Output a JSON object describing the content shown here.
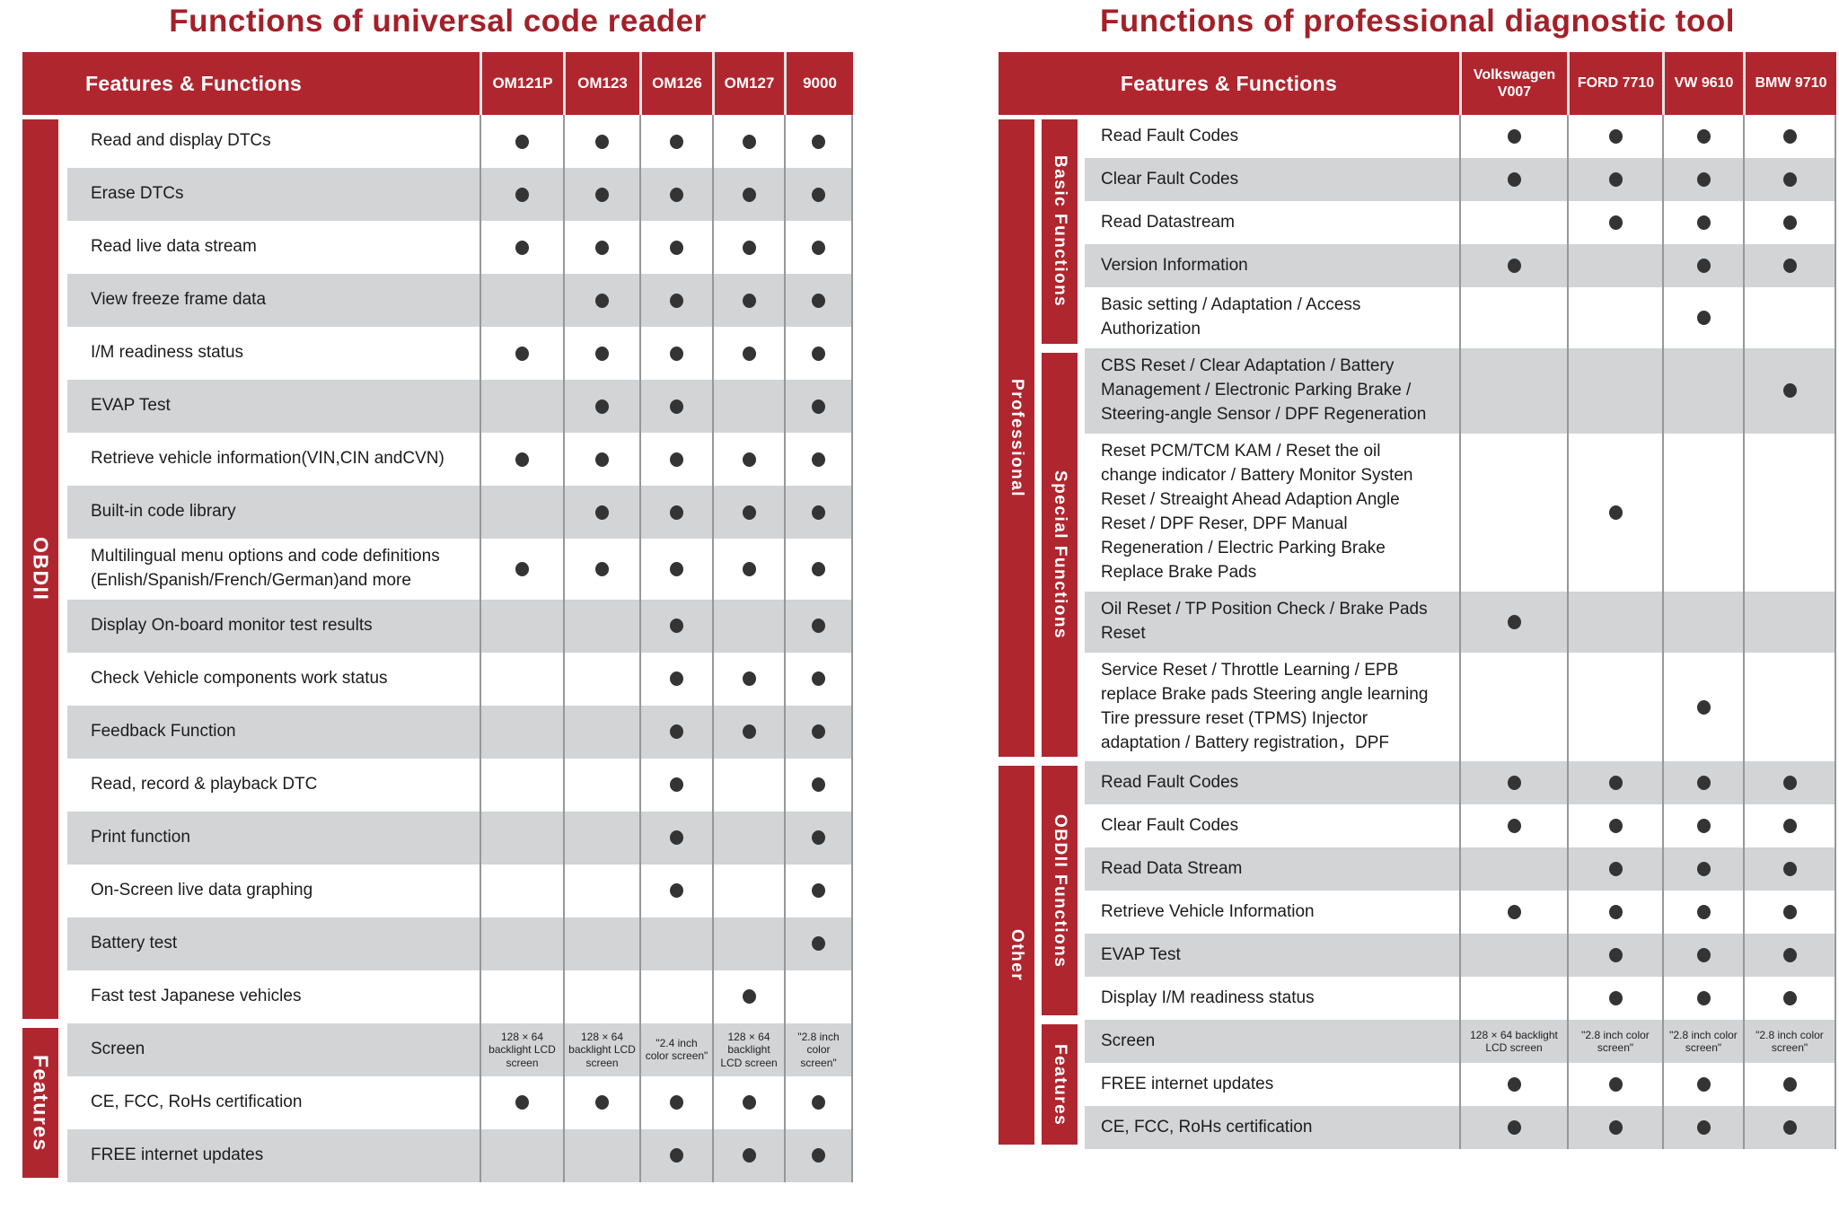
{
  "colors": {
    "header_red": "#B0262F",
    "title_red": "#A32129",
    "row_gray": "#D2D4D6",
    "dot": "#343434",
    "grid_line": "#95989A"
  },
  "left_table": {
    "title": "Functions of universal code reader",
    "features_header": "Features & Functions",
    "products": [
      "OM121P",
      "OM123",
      "OM126",
      "OM127",
      "9000"
    ],
    "groups": [
      {
        "label": "OBDII",
        "row_start": 0,
        "row_end": 17
      },
      {
        "label": "Features",
        "row_start": 17,
        "row_end": 20
      }
    ],
    "rows": [
      {
        "label": "Read and display DTCs",
        "cells": [
          1,
          1,
          1,
          1,
          1
        ]
      },
      {
        "label": "Erase DTCs",
        "cells": [
          1,
          1,
          1,
          1,
          1
        ]
      },
      {
        "label": "Read live data stream",
        "cells": [
          1,
          1,
          1,
          1,
          1
        ]
      },
      {
        "label": "View freeze frame data",
        "cells": [
          0,
          1,
          1,
          1,
          1
        ]
      },
      {
        "label": "I/M readiness status",
        "cells": [
          1,
          1,
          1,
          1,
          1
        ]
      },
      {
        "label": "EVAP Test",
        "cells": [
          0,
          1,
          1,
          0,
          1
        ]
      },
      {
        "label": "Retrieve vehicle information(VIN,CIN andCVN)",
        "cells": [
          1,
          1,
          1,
          1,
          1
        ]
      },
      {
        "label": "Built-in code library",
        "cells": [
          0,
          1,
          1,
          1,
          1
        ]
      },
      {
        "label": "Multilingual menu options and code definitions (Enlish/Spanish/French/German)and more",
        "cells": [
          1,
          1,
          1,
          1,
          1
        ]
      },
      {
        "label": "Display On-board monitor test results",
        "cells": [
          0,
          0,
          1,
          0,
          1
        ]
      },
      {
        "label": "Check Vehicle components work status",
        "cells": [
          0,
          0,
          1,
          1,
          1
        ]
      },
      {
        "label": "Feedback Function",
        "cells": [
          0,
          0,
          1,
          1,
          1
        ]
      },
      {
        "label": "Read, record & playback DTC",
        "cells": [
          0,
          0,
          1,
          0,
          1
        ]
      },
      {
        "label": "Print function",
        "cells": [
          0,
          0,
          1,
          0,
          1
        ]
      },
      {
        "label": "On-Screen live data graphing",
        "cells": [
          0,
          0,
          1,
          0,
          1
        ]
      },
      {
        "label": "Battery test",
        "cells": [
          0,
          0,
          0,
          0,
          1
        ]
      },
      {
        "label": "Fast test Japanese vehicles",
        "cells": [
          0,
          0,
          0,
          1,
          0
        ]
      },
      {
        "label": "Screen",
        "cells": [
          "128 × 64 backlight LCD screen",
          "128 × 64 backlight LCD screen",
          "\"2.4 inch color screen\"",
          "128 × 64 backlight LCD screen",
          "\"2.8 inch color screen\""
        ]
      },
      {
        "label": "CE, FCC, RoHs certification",
        "cells": [
          1,
          1,
          1,
          1,
          1
        ]
      },
      {
        "label": "FREE internet updates",
        "cells": [
          0,
          0,
          1,
          1,
          1
        ]
      }
    ]
  },
  "right_table": {
    "title": "Functions of professional diagnostic tool",
    "features_header": "Features & Functions",
    "products": [
      "Volkswagen V007",
      "FORD 7710",
      "VW 9610",
      "BMW 9710"
    ],
    "outer_groups": [
      {
        "label": "Professional",
        "row_start": 0,
        "row_end": 9
      },
      {
        "label": "Other",
        "row_start": 9,
        "row_end": 18
      }
    ],
    "inner_groups": [
      {
        "label": "Basic Functions",
        "row_start": 0,
        "row_end": 5
      },
      {
        "label": "Special Functions",
        "row_start": 5,
        "row_end": 9
      },
      {
        "label": "OBDII Functions",
        "row_start": 9,
        "row_end": 15
      },
      {
        "label": "Features",
        "row_start": 15,
        "row_end": 18
      }
    ],
    "rows": [
      {
        "label": "Read Fault Codes",
        "cells": [
          1,
          1,
          1,
          1
        ]
      },
      {
        "label": "Clear Fault Codes",
        "cells": [
          1,
          1,
          1,
          1
        ]
      },
      {
        "label": "Read Datastream",
        "cells": [
          0,
          1,
          1,
          1
        ]
      },
      {
        "label": "Version Information",
        "cells": [
          1,
          0,
          1,
          1
        ]
      },
      {
        "label": "Basic setting / Adaptation / Access Authorization",
        "cells": [
          0,
          0,
          1,
          0
        ]
      },
      {
        "label": "CBS Reset / Clear Adaptation / Battery Management / Electronic Parking Brake / Steering-angle Sensor / DPF Regeneration",
        "cells": [
          0,
          0,
          0,
          1
        ]
      },
      {
        "label": "Reset PCM/TCM KAM / Reset the oil change indicator / Battery Monitor Systen Reset / Streaight Ahead Adaption Angle Reset / DPF Reser, DPF Manual Regeneration / Electric Parking Brake Replace Brake Pads",
        "cells": [
          0,
          1,
          0,
          0
        ]
      },
      {
        "label": "Oil Reset / TP Position Check / Brake Pads Reset",
        "cells": [
          1,
          0,
          0,
          0
        ]
      },
      {
        "label": "Service Reset / Throttle Learning / EPB replace Brake pads Steering angle learning Tire pressure reset (TPMS) Injector adaptation / Battery registration，DPF",
        "cells": [
          0,
          0,
          1,
          0
        ]
      },
      {
        "label": "Read Fault Codes",
        "cells": [
          1,
          1,
          1,
          1
        ]
      },
      {
        "label": "Clear Fault Codes",
        "cells": [
          1,
          1,
          1,
          1
        ]
      },
      {
        "label": "Read Data Stream",
        "cells": [
          0,
          1,
          1,
          1
        ]
      },
      {
        "label": "Retrieve Vehicle Information",
        "cells": [
          1,
          1,
          1,
          1
        ]
      },
      {
        "label": "EVAP Test",
        "cells": [
          0,
          1,
          1,
          1
        ]
      },
      {
        "label": "Display I/M readiness status",
        "cells": [
          0,
          1,
          1,
          1
        ]
      },
      {
        "label": "Screen",
        "cells": [
          "128 × 64 backlight LCD screen",
          "\"2.8 inch color screen\"",
          "\"2.8 inch color screen\"",
          "\"2.8 inch color screen\""
        ]
      },
      {
        "label": "FREE internet updates",
        "cells": [
          1,
          1,
          1,
          1
        ]
      },
      {
        "label": "CE, FCC, RoHs certification",
        "cells": [
          1,
          1,
          1,
          1
        ]
      }
    ]
  }
}
